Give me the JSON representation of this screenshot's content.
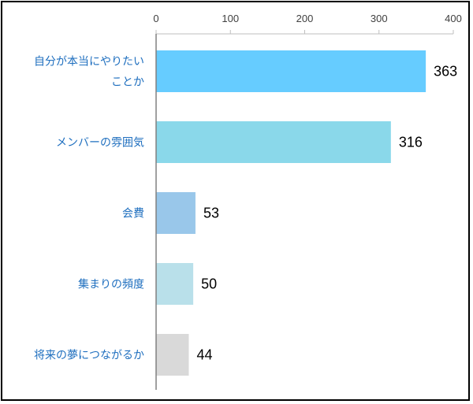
{
  "chart_data": {
    "type": "bar",
    "orientation": "horizontal",
    "categories": [
      [
        "自分が本当にやりたい",
        "ことか"
      ],
      [
        "メンバーの雰囲気"
      ],
      [
        "会費"
      ],
      [
        "集まりの頻度"
      ],
      [
        "将来の夢につながるか"
      ]
    ],
    "values": [
      363,
      316,
      53,
      50,
      44
    ],
    "value_labels": [
      "363",
      "316",
      "53",
      "50",
      "44"
    ],
    "bar_colors": [
      "#66ccff",
      "#8ad8ea",
      "#99c7ea",
      "#b9e0ea",
      "#d9d9d9"
    ],
    "xlim": [
      0,
      400
    ],
    "x_ticks": [
      0,
      100,
      200,
      300,
      400
    ],
    "x_axis_position": "top",
    "grid": false,
    "legend": "none",
    "title": "",
    "xlabel": "",
    "ylabel": ""
  }
}
